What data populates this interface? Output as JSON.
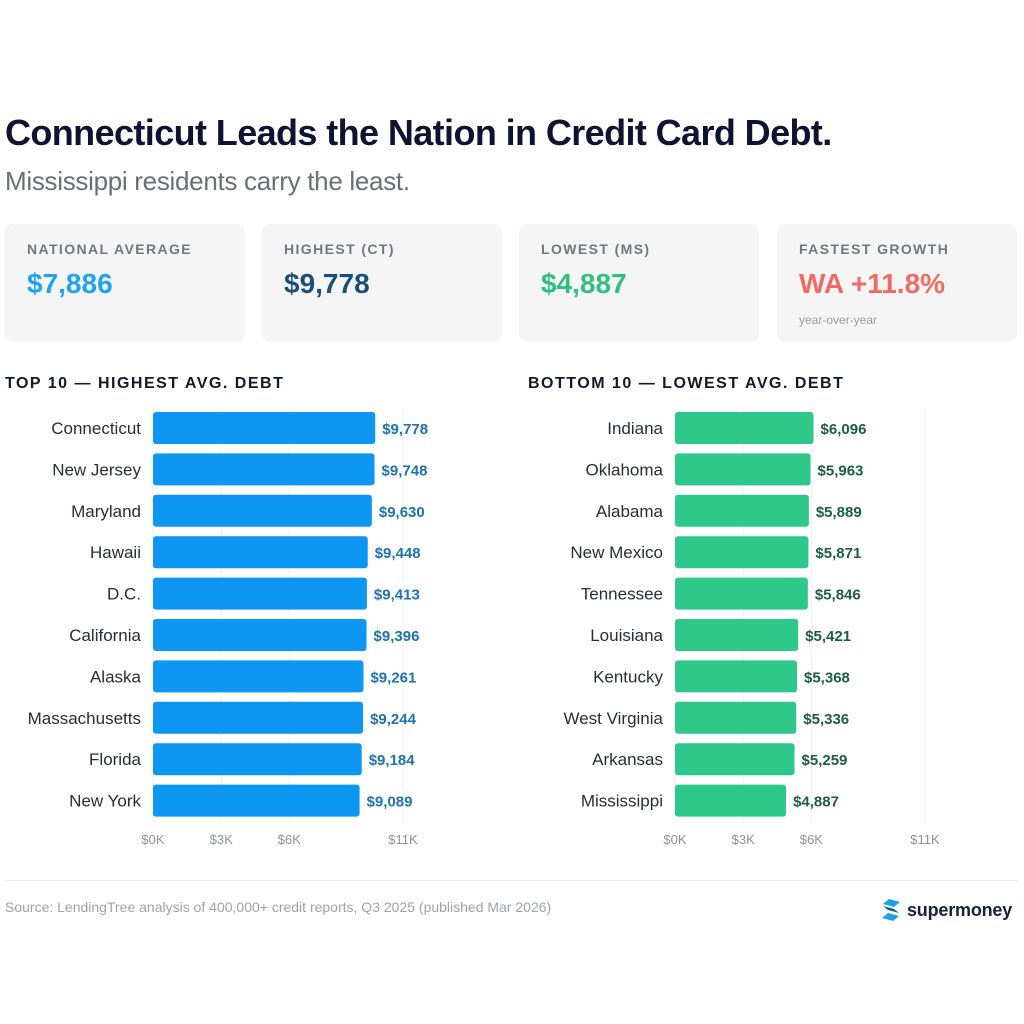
{
  "header": {
    "title": "Connecticut Leads the Nation in Credit Card Debt.",
    "subtitle": "Mississippi residents carry the least."
  },
  "stats": [
    {
      "label": "NATIONAL AVERAGE",
      "value": "$7,886",
      "note": "",
      "color": "#1ea3f2"
    },
    {
      "label": "HIGHEST (CT)",
      "value": "$9,778",
      "note": "",
      "color": "#1a4f7c"
    },
    {
      "label": "LOWEST (MS)",
      "value": "$4,887",
      "note": "",
      "color": "#2fc07f"
    },
    {
      "label": "FASTEST GROWTH",
      "value": "WA +11.8%",
      "note": "year-over-year",
      "color": "#f06a63"
    }
  ],
  "chart_data": [
    {
      "type": "bar",
      "orientation": "horizontal",
      "title": "TOP 10 — HIGHEST AVG. DEBT",
      "categories": [
        "Connecticut",
        "New Jersey",
        "Maryland",
        "Hawaii",
        "D.C.",
        "California",
        "Alaska",
        "Massachusetts",
        "Florida",
        "New York"
      ],
      "values": [
        9778,
        9748,
        9630,
        9448,
        9413,
        9396,
        9261,
        9244,
        9184,
        9089
      ],
      "value_labels": [
        "$9,778",
        "$9,748",
        "$9,630",
        "$9,448",
        "$9,413",
        "$9,396",
        "$9,261",
        "$9,244",
        "$9,184",
        "$9,089"
      ],
      "xlim": [
        0,
        11000
      ],
      "ticks": [
        0,
        3000,
        6000,
        11000
      ],
      "tick_labels": [
        "$0K",
        "$3K",
        "$6K",
        "$11K"
      ],
      "bar_color": "#0d96f2",
      "label_color": "#1d73ad",
      "grid": true
    },
    {
      "type": "bar",
      "orientation": "horizontal",
      "title": "BOTTOM 10 — LOWEST AVG. DEBT",
      "categories": [
        "Indiana",
        "Oklahoma",
        "Alabama",
        "New Mexico",
        "Tennessee",
        "Louisiana",
        "Kentucky",
        "West Virginia",
        "Arkansas",
        "Mississippi"
      ],
      "values": [
        6096,
        5963,
        5889,
        5871,
        5846,
        5421,
        5368,
        5336,
        5259,
        4887
      ],
      "value_labels": [
        "$6,096",
        "$5,963",
        "$5,889",
        "$5,871",
        "$5,846",
        "$5,421",
        "$5,368",
        "$5,336",
        "$5,259",
        "$4,887"
      ],
      "xlim": [
        0,
        11000
      ],
      "ticks": [
        0,
        3000,
        6000,
        11000
      ],
      "tick_labels": [
        "$0K",
        "$3K",
        "$6K",
        "$11K"
      ],
      "bar_color": "#2ec98a",
      "label_color": "#1c5e3e",
      "grid": true
    }
  ],
  "footer": {
    "source": "Source: LendingTree analysis of 400,000+ credit reports, Q3 2025 (published Mar 2026)",
    "logo_text": "supermoney",
    "logo_icon": "supermoney-logo-icon",
    "logo_color": "#1aa1e8"
  }
}
